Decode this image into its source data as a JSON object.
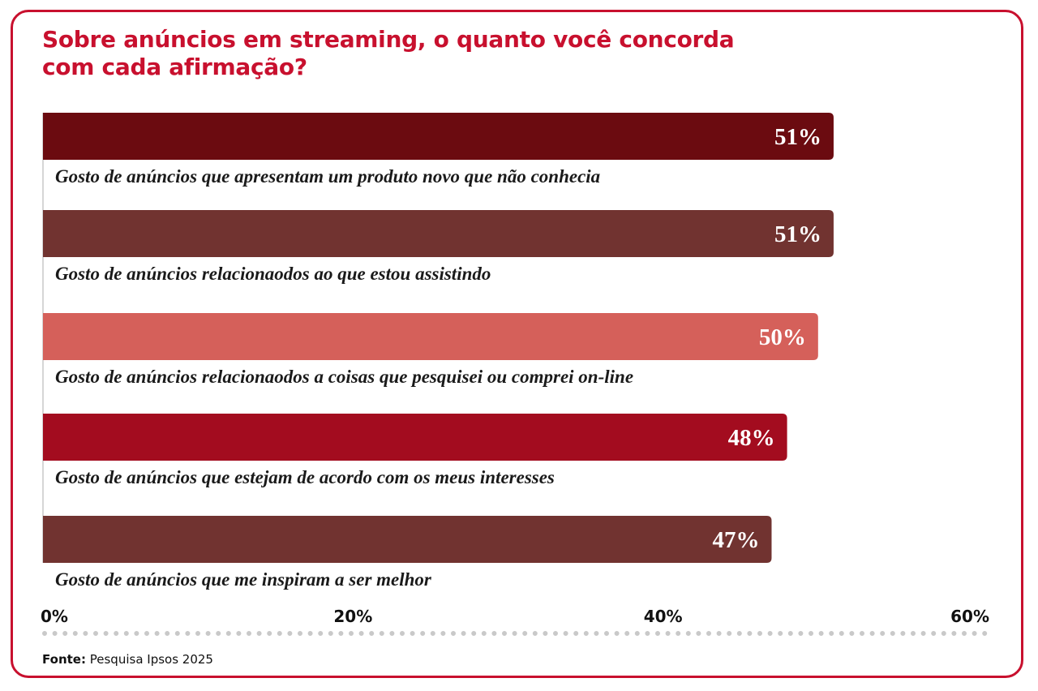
{
  "source": {
    "label": "Fonte:",
    "text": "Pesquisa Ipsos 2025"
  },
  "chart_data": {
    "type": "bar",
    "orientation": "horizontal",
    "title": "Sobre anúncios em streaming, o quanto você concorda com cada afirmação?",
    "categories": [
      "Gosto de anúncios que apresentam um produto novo que não conhecia",
      "Gosto de anúncios relacionaodos ao que estou assistindo",
      "Gosto de anúncios relacionaodos a coisas que pesquisei ou comprei on-line",
      "Gosto de anúncios que estejam de acordo com os meus interesses",
      "Gosto de anúncios que me inspiram a ser melhor"
    ],
    "values": [
      51,
      51,
      50,
      48,
      47
    ],
    "value_labels": [
      "51%",
      "51%",
      "50%",
      "48%",
      "47%"
    ],
    "colors": [
      "#6b0b10",
      "#713330",
      "#d5605a",
      "#a30c1f",
      "#713330"
    ],
    "xlim": [
      0,
      60
    ],
    "xticks": [
      0,
      20,
      40,
      60
    ],
    "xtick_labels": [
      "0%",
      "20%",
      "40%",
      "60%"
    ],
    "grid": false,
    "legend": "none"
  }
}
